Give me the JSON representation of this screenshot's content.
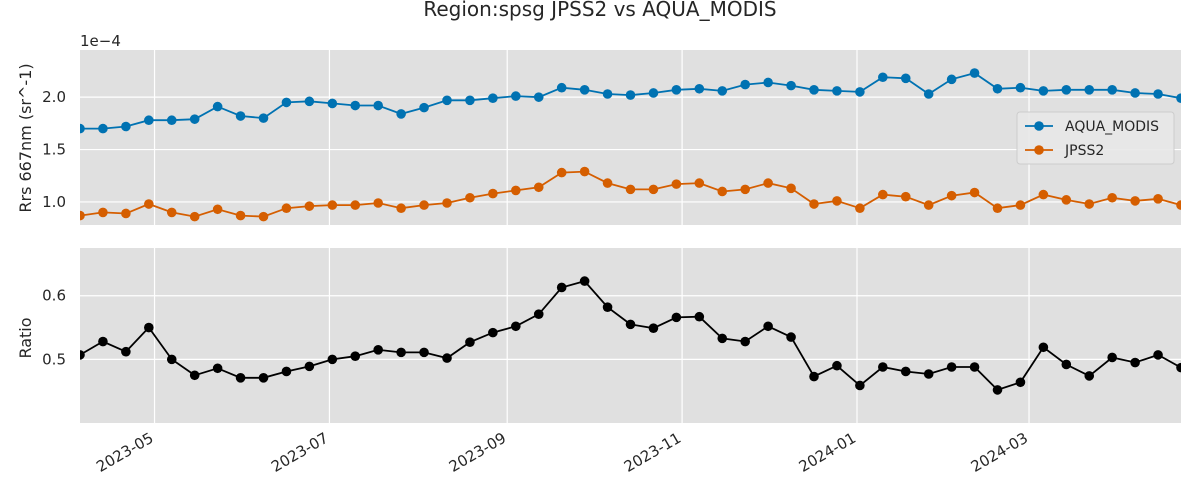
{
  "chart_data": {
    "type": "line",
    "title": "Region:spsg JPSS2 vs AQUA_MODIS",
    "colors": {
      "AQUA_MODIS": "#0072b2",
      "JPSS2": "#d55e00",
      "Ratio": "#000000",
      "panel_bg": "#e0e0e0",
      "grid": "#ffffff"
    },
    "x": [
      "2023-04-05",
      "2023-04-13",
      "2023-04-21",
      "2023-04-29",
      "2023-05-07",
      "2023-05-15",
      "2023-05-23",
      "2023-05-31",
      "2023-06-08",
      "2023-06-16",
      "2023-06-24",
      "2023-07-02",
      "2023-07-10",
      "2023-07-18",
      "2023-07-26",
      "2023-08-03",
      "2023-08-11",
      "2023-08-19",
      "2023-08-27",
      "2023-09-04",
      "2023-09-12",
      "2023-09-20",
      "2023-09-28",
      "2023-10-06",
      "2023-10-14",
      "2023-10-22",
      "2023-10-30",
      "2023-11-07",
      "2023-11-15",
      "2023-11-23",
      "2023-12-01",
      "2023-12-09",
      "2023-12-17",
      "2023-12-25",
      "2024-01-02",
      "2024-01-10",
      "2024-01-18",
      "2024-01-26",
      "2024-02-03",
      "2024-02-11",
      "2024-02-19",
      "2024-02-27",
      "2024-03-06",
      "2024-03-14",
      "2024-03-22",
      "2024-03-30",
      "2024-04-07",
      "2024-04-15",
      "2024-04-23"
    ],
    "xlim": [
      "2023-04-05",
      "2024-04-23"
    ],
    "xticks": [
      "2023-05",
      "2023-07",
      "2023-09",
      "2023-11",
      "2024-01",
      "2024-03"
    ],
    "grid": true,
    "panels": [
      {
        "ylabel": "Rrs 667nm (sr^-1)",
        "scale_label": "1e−4",
        "ylim": [
          0.78,
          2.45
        ],
        "yticks": [
          "1.0",
          "1.5",
          "2.0"
        ],
        "legend_position": "right",
        "series": [
          {
            "name": "AQUA_MODIS",
            "values": [
              1.7,
              1.7,
              1.72,
              1.78,
              1.78,
              1.79,
              1.91,
              1.82,
              1.8,
              1.95,
              1.96,
              1.94,
              1.92,
              1.92,
              1.84,
              1.9,
              1.97,
              1.97,
              1.99,
              2.01,
              2.0,
              2.09,
              2.07,
              2.03,
              2.02,
              2.04,
              2.07,
              2.08,
              2.06,
              2.12,
              2.14,
              2.11,
              2.07,
              2.06,
              2.05,
              2.19,
              2.18,
              2.03,
              2.17,
              2.23,
              2.08,
              2.09,
              2.06,
              2.07,
              2.07,
              2.07,
              2.04,
              2.03,
              1.99
            ]
          },
          {
            "name": "JPSS2",
            "values": [
              0.87,
              0.9,
              0.89,
              0.98,
              0.9,
              0.86,
              0.93,
              0.87,
              0.86,
              0.94,
              0.96,
              0.97,
              0.97,
              0.99,
              0.94,
              0.97,
              0.99,
              1.04,
              1.08,
              1.11,
              1.14,
              1.28,
              1.29,
              1.18,
              1.12,
              1.12,
              1.17,
              1.18,
              1.1,
              1.12,
              1.18,
              1.13,
              0.98,
              1.01,
              0.94,
              1.07,
              1.05,
              0.97,
              1.06,
              1.09,
              0.94,
              0.97,
              1.07,
              1.02,
              0.98,
              1.04,
              1.01,
              1.03,
              0.97
            ]
          }
        ]
      },
      {
        "ylabel": "Ratio",
        "ylim": [
          0.4,
          0.675
        ],
        "yticks": [
          "0.5",
          "0.6"
        ],
        "series": [
          {
            "name": "Ratio",
            "values": [
              0.507,
              0.528,
              0.512,
              0.55,
              0.5,
              0.475,
              0.486,
              0.471,
              0.471,
              0.481,
              0.489,
              0.5,
              0.505,
              0.515,
              0.511,
              0.511,
              0.502,
              0.527,
              0.542,
              0.552,
              0.571,
              0.613,
              0.623,
              0.582,
              0.555,
              0.549,
              0.566,
              0.567,
              0.533,
              0.528,
              0.552,
              0.535,
              0.473,
              0.49,
              0.459,
              0.488,
              0.481,
              0.477,
              0.488,
              0.488,
              0.452,
              0.464,
              0.519,
              0.492,
              0.474,
              0.503,
              0.495,
              0.507,
              0.487
            ]
          }
        ]
      }
    ]
  }
}
